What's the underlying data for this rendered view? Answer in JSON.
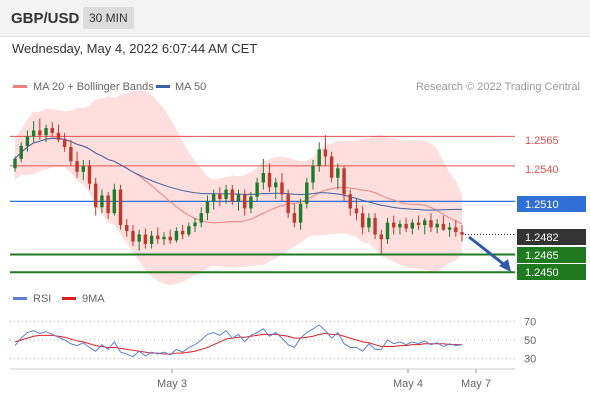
{
  "header": {
    "symbol": "GBP/USD",
    "interval": "30 MIN"
  },
  "datetime": "Wednesday, May 4, 2022 6:07:44 AM CET",
  "legend": {
    "ma20_label": "MA 20 + Bollinger Bands",
    "ma50_label": "MA 50",
    "credit": "Research © 2022 Trading Central"
  },
  "rsi_legend": {
    "rsi_label": "RSI",
    "ma_label": "9MA"
  },
  "colors": {
    "up": "#1e7b2e",
    "down": "#c0392b",
    "ma20": "#f08080",
    "ma50": "#3a5fa8",
    "band": "#ffd6d6",
    "pivot": "#2f6fd6",
    "current": "#333333",
    "target": "#1f7a1f",
    "resistance": "#e05050"
  },
  "levels": {
    "r2": "1.2565",
    "r1": "1.2540",
    "pivot": "1.2510",
    "current": "1.2482",
    "s1": "1.2465",
    "s2": "1.2450"
  },
  "chart_data": [
    {
      "type": "candlestick",
      "xlabels": [
        "May 3",
        "May 4",
        "May 7"
      ],
      "ylim": [
        1.2435,
        1.26
      ],
      "candles": [
        [
          1.2538,
          1.2548,
          1.2535,
          1.2546
        ],
        [
          1.2546,
          1.256,
          1.2543,
          1.2557
        ],
        [
          1.2557,
          1.257,
          1.2552,
          1.2565
        ],
        [
          1.2565,
          1.2578,
          1.256,
          1.257
        ],
        [
          1.257,
          1.258,
          1.2562,
          1.2566
        ],
        [
          1.2566,
          1.2575,
          1.256,
          1.2572
        ],
        [
          1.2572,
          1.2577,
          1.2565,
          1.2568
        ],
        [
          1.2568,
          1.2575,
          1.256,
          1.2562
        ],
        [
          1.2562,
          1.2568,
          1.2552,
          1.2556
        ],
        [
          1.2556,
          1.2562,
          1.254,
          1.2544
        ],
        [
          1.2544,
          1.2552,
          1.253,
          1.2535
        ],
        [
          1.2535,
          1.2545,
          1.2528,
          1.254
        ],
        [
          1.254,
          1.2545,
          1.252,
          1.2525
        ],
        [
          1.2525,
          1.253,
          1.2498,
          1.2505
        ],
        [
          1.2505,
          1.252,
          1.25,
          1.2515
        ],
        [
          1.2515,
          1.2518,
          1.2495,
          1.25
        ],
        [
          1.25,
          1.2525,
          1.2498,
          1.252
        ],
        [
          1.252,
          1.2524,
          1.2486,
          1.249
        ],
        [
          1.249,
          1.2495,
          1.248,
          1.2485
        ],
        [
          1.2485,
          1.249,
          1.2472,
          1.2476
        ],
        [
          1.2476,
          1.2486,
          1.2468,
          1.2482
        ],
        [
          1.2482,
          1.2487,
          1.247,
          1.2474
        ],
        [
          1.2474,
          1.2485,
          1.247,
          1.2481
        ],
        [
          1.2481,
          1.2488,
          1.2474,
          1.2478
        ],
        [
          1.2478,
          1.2484,
          1.2473,
          1.248
        ],
        [
          1.248,
          1.2486,
          1.2474,
          1.2477
        ],
        [
          1.2477,
          1.2488,
          1.2475,
          1.2485
        ],
        [
          1.2485,
          1.249,
          1.2478,
          1.2482
        ],
        [
          1.2482,
          1.2492,
          1.248,
          1.2489
        ],
        [
          1.2489,
          1.2496,
          1.2484,
          1.2492
        ],
        [
          1.2492,
          1.2505,
          1.2488,
          1.25
        ],
        [
          1.25,
          1.2515,
          1.2494,
          1.251
        ],
        [
          1.251,
          1.252,
          1.2503,
          1.2516
        ],
        [
          1.2516,
          1.2522,
          1.2506,
          1.2512
        ],
        [
          1.2512,
          1.2524,
          1.2508,
          1.252
        ],
        [
          1.252,
          1.2524,
          1.2507,
          1.251
        ],
        [
          1.251,
          1.252,
          1.2502,
          1.2516
        ],
        [
          1.2516,
          1.252,
          1.2498,
          1.2504
        ],
        [
          1.2504,
          1.2518,
          1.25,
          1.2514
        ],
        [
          1.2514,
          1.253,
          1.251,
          1.2526
        ],
        [
          1.2526,
          1.2546,
          1.252,
          1.2534
        ],
        [
          1.2534,
          1.2542,
          1.2518,
          1.2522
        ],
        [
          1.2522,
          1.253,
          1.2512,
          1.2526
        ],
        [
          1.2526,
          1.2534,
          1.251,
          1.2516
        ],
        [
          1.2516,
          1.252,
          1.2496,
          1.25
        ],
        [
          1.25,
          1.2508,
          1.2488,
          1.2492
        ],
        [
          1.2492,
          1.2512,
          1.2486,
          1.2508
        ],
        [
          1.2508,
          1.253,
          1.2504,
          1.2526
        ],
        [
          1.2526,
          1.2545,
          1.252,
          1.254
        ],
        [
          1.254,
          1.256,
          1.2535,
          1.2554
        ],
        [
          1.2554,
          1.2566,
          1.254,
          1.2548
        ],
        [
          1.2548,
          1.2552,
          1.2526,
          1.253
        ],
        [
          1.253,
          1.2542,
          1.252,
          1.2538
        ],
        [
          1.2538,
          1.254,
          1.251,
          1.2516
        ],
        [
          1.2516,
          1.252,
          1.2498,
          1.2504
        ],
        [
          1.2504,
          1.2512,
          1.2494,
          1.25
        ],
        [
          1.25,
          1.2506,
          1.2482,
          1.2488
        ],
        [
          1.2488,
          1.25,
          1.2484,
          1.2496
        ],
        [
          1.2496,
          1.25,
          1.2478,
          1.2482
        ],
        [
          1.2482,
          1.2486,
          1.2466,
          1.2478
        ],
        [
          1.2478,
          1.2496,
          1.2474,
          1.2492
        ],
        [
          1.2492,
          1.2498,
          1.2482,
          1.2488
        ],
        [
          1.2488,
          1.2494,
          1.2482,
          1.2491
        ],
        [
          1.2491,
          1.2496,
          1.2484,
          1.2487
        ],
        [
          1.2487,
          1.2495,
          1.2482,
          1.2492
        ],
        [
          1.2492,
          1.2498,
          1.2486,
          1.249
        ],
        [
          1.249,
          1.2496,
          1.2482,
          1.2494
        ],
        [
          1.2494,
          1.25,
          1.2484,
          1.2488
        ],
        [
          1.2488,
          1.2495,
          1.2483,
          1.2491
        ],
        [
          1.2491,
          1.2498,
          1.2485,
          1.2486
        ],
        [
          1.2486,
          1.2492,
          1.248,
          1.2488
        ],
        [
          1.2488,
          1.2494,
          1.248,
          1.2484
        ],
        [
          1.2484,
          1.249,
          1.2476,
          1.2482
        ]
      ]
    },
    {
      "type": "line",
      "title": "RSI",
      "yticks": [
        "70",
        "50",
        "30"
      ],
      "ylim": [
        20,
        80
      ],
      "series": [
        {
          "name": "RSI",
          "values": [
            44,
            52,
            58,
            60,
            57,
            59,
            56,
            53,
            50,
            46,
            44,
            47,
            42,
            38,
            45,
            40,
            48,
            37,
            35,
            32,
            38,
            33,
            37,
            35,
            37,
            34,
            40,
            37,
            42,
            45,
            50,
            56,
            58,
            55,
            60,
            52,
            56,
            48,
            55,
            58,
            62,
            54,
            58,
            52,
            45,
            42,
            52,
            58,
            62,
            66,
            60,
            52,
            58,
            46,
            42,
            42,
            38,
            46,
            40,
            40,
            50,
            46,
            48,
            45,
            48,
            46,
            49,
            45,
            47,
            43,
            46,
            44,
            45
          ]
        },
        {
          "name": "9MA",
          "values": [
            48,
            50,
            52,
            54,
            55,
            55,
            55,
            54,
            53,
            51,
            49,
            48,
            46,
            44,
            43,
            42,
            42,
            41,
            40,
            39,
            38,
            37,
            36,
            36,
            35,
            35,
            36,
            36,
            37,
            38,
            40,
            42,
            45,
            48,
            51,
            52,
            53,
            53,
            54,
            55,
            56,
            56,
            56,
            55,
            54,
            52,
            52,
            53,
            54,
            56,
            57,
            56,
            56,
            54,
            52,
            50,
            48,
            47,
            45,
            43,
            43,
            43,
            44,
            44,
            45,
            45,
            46,
            46,
            46,
            46,
            45,
            45,
            45
          ]
        }
      ]
    }
  ]
}
